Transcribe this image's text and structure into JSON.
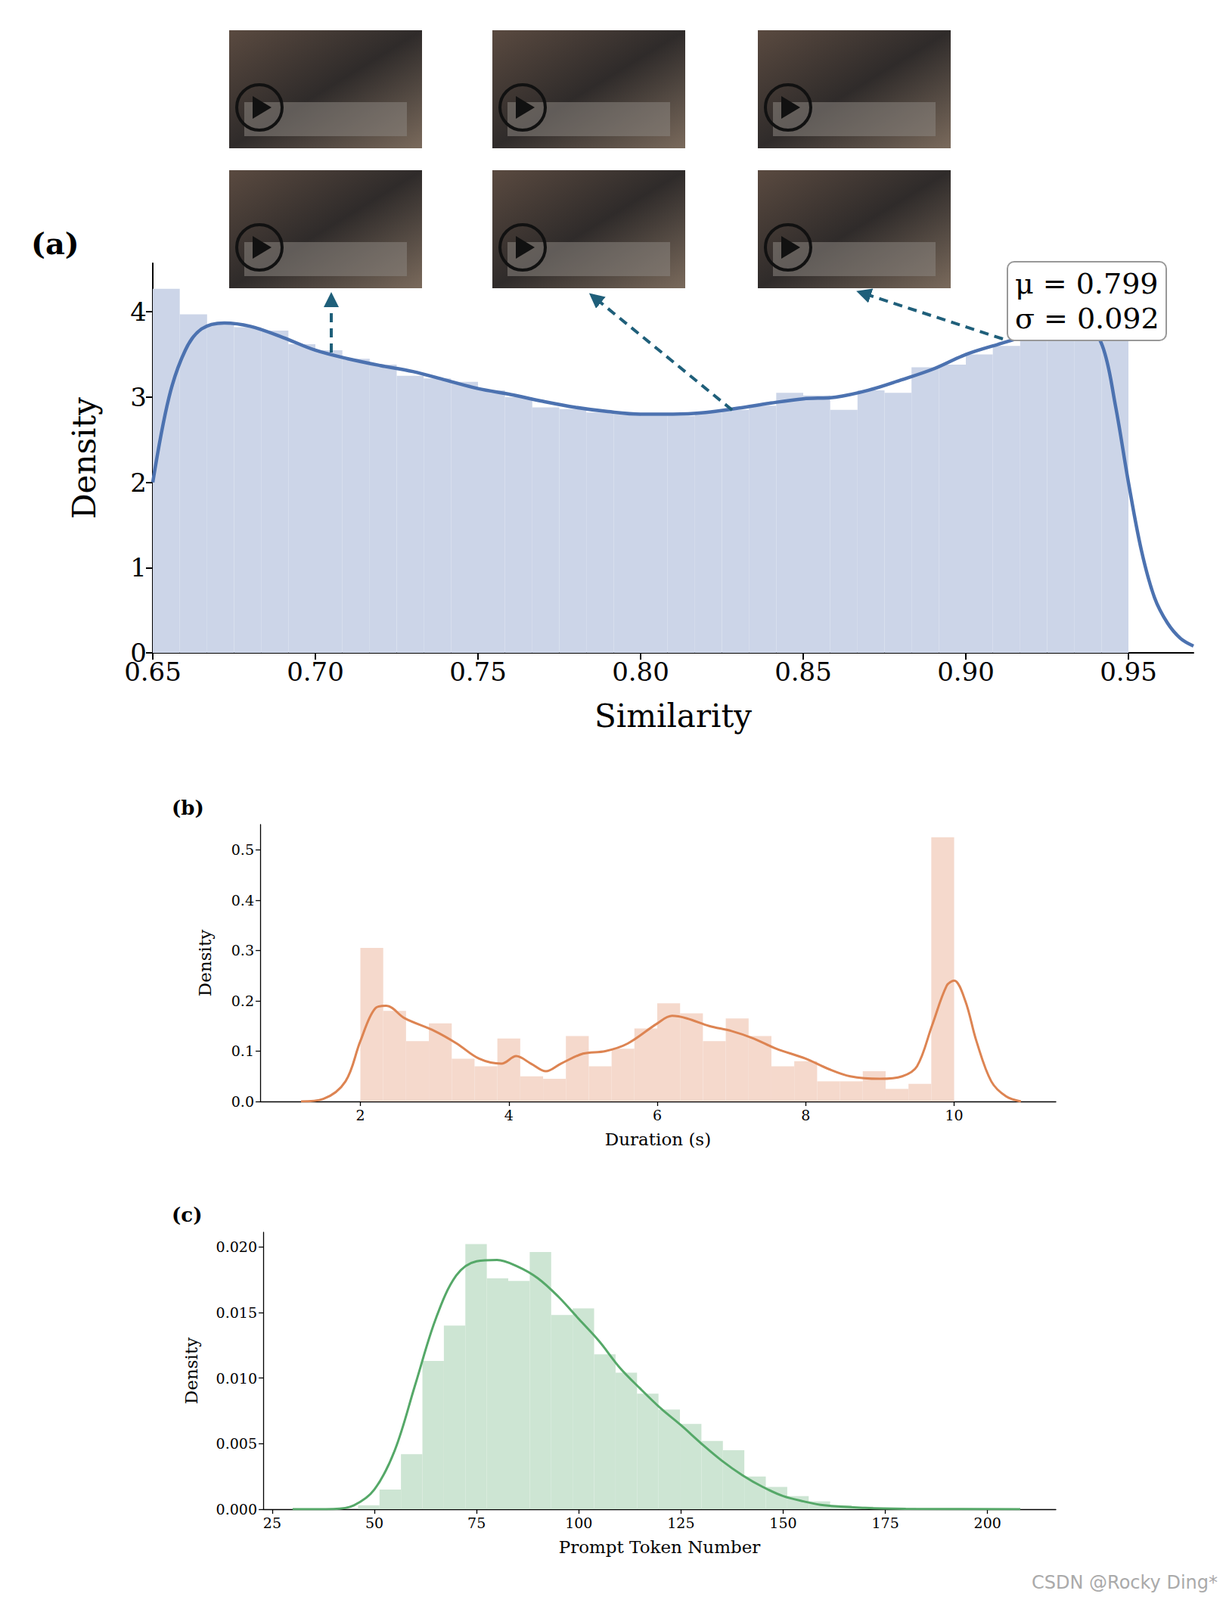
{
  "watermark": "CSDN @Rocky Ding*",
  "chart_data": [
    {
      "type": "histogram",
      "title": "(a)",
      "x_label": "Similarity",
      "y_label": "Density",
      "annotations": [
        "μ = 0.799",
        "σ = 0.092"
      ],
      "bins": [
        0.65,
        0.6583,
        0.6667,
        0.675,
        0.6833,
        0.6917,
        0.7,
        0.7083,
        0.7167,
        0.725,
        0.7333,
        0.7417,
        0.75,
        0.7583,
        0.7667,
        0.775,
        0.7833,
        0.7917,
        0.8,
        0.8083,
        0.8167,
        0.825,
        0.8333,
        0.8417,
        0.85,
        0.8583,
        0.8667,
        0.875,
        0.8833,
        0.8917,
        0.9,
        0.9083,
        0.9167,
        0.925,
        0.9333,
        0.9417,
        0.95
      ],
      "values": [
        4.27,
        3.97,
        3.85,
        3.82,
        3.78,
        3.62,
        3.55,
        3.45,
        3.38,
        3.25,
        3.22,
        3.18,
        3.08,
        3.0,
        2.88,
        2.86,
        2.82,
        2.8,
        2.78,
        2.78,
        2.82,
        2.85,
        2.9,
        3.05,
        3.02,
        2.85,
        3.08,
        3.05,
        3.35,
        3.38,
        3.5,
        3.6,
        3.7,
        3.8,
        3.85,
        3.85
      ],
      "color": "#ccd5e8",
      "curve": {
        "x": [
          0.65,
          0.655,
          0.66,
          0.665,
          0.672,
          0.68,
          0.69,
          0.7,
          0.71,
          0.72,
          0.73,
          0.74,
          0.75,
          0.76,
          0.77,
          0.78,
          0.79,
          0.8,
          0.81,
          0.82,
          0.83,
          0.84,
          0.85,
          0.86,
          0.87,
          0.88,
          0.89,
          0.9,
          0.91,
          0.92,
          0.93,
          0.937,
          0.942,
          0.946,
          0.95,
          0.954,
          0.958,
          0.962,
          0.966,
          0.97
        ],
        "values": [
          2.0,
          3.0,
          3.55,
          3.8,
          3.87,
          3.83,
          3.7,
          3.55,
          3.45,
          3.37,
          3.3,
          3.2,
          3.1,
          3.03,
          2.95,
          2.88,
          2.83,
          2.8,
          2.8,
          2.82,
          2.87,
          2.93,
          2.98,
          3.0,
          3.08,
          3.2,
          3.33,
          3.5,
          3.62,
          3.73,
          3.82,
          3.84,
          3.6,
          2.9,
          2.0,
          1.2,
          0.65,
          0.35,
          0.17,
          0.08
        ],
        "color": "#4c72b0"
      },
      "xlim": [
        0.65,
        0.97
      ],
      "xticks": [
        0.65,
        {
          "value": 0.7,
          "label": "0.70"
        },
        0.75,
        {
          "value": 0.8,
          "label": "0.80"
        },
        0.85,
        {
          "value": 0.9,
          "label": "0.90"
        },
        0.95
      ],
      "ylim": [
        0,
        4.57
      ],
      "yticks": [
        0,
        1,
        2,
        3,
        4
      ],
      "grid": false
    },
    {
      "type": "histogram",
      "title": "(b)",
      "x_label": "Duration (s)",
      "y_label": "Density",
      "bins": [
        2,
        2.308,
        2.615,
        2.923,
        3.231,
        3.538,
        3.846,
        4.154,
        4.462,
        4.769,
        5.077,
        5.385,
        5.692,
        6,
        6.308,
        6.615,
        6.923,
        7.231,
        7.538,
        7.846,
        8.154,
        8.462,
        8.769,
        9.077,
        9.385,
        9.692,
        10
      ],
      "values": [
        0.305,
        0.18,
        0.12,
        0.155,
        0.085,
        0.07,
        0.125,
        0.05,
        0.045,
        0.13,
        0.07,
        0.105,
        0.145,
        0.195,
        0.175,
        0.12,
        0.165,
        0.13,
        0.07,
        0.08,
        0.04,
        0.04,
        0.06,
        0.025,
        0.035,
        0.525
      ],
      "color": "#f5d9cc",
      "curve": {
        "x": [
          1.2,
          1.5,
          1.8,
          2.0,
          2.2,
          2.35,
          2.6,
          3.0,
          3.3,
          3.6,
          3.9,
          4.1,
          4.3,
          4.5,
          4.7,
          5.0,
          5.3,
          5.6,
          6.0,
          6.2,
          6.4,
          6.7,
          7.0,
          7.3,
          7.6,
          8.0,
          8.3,
          8.6,
          9.0,
          9.3,
          9.5,
          9.7,
          9.9,
          10.0,
          10.15,
          10.3,
          10.5,
          10.7,
          10.9
        ],
        "values": [
          0.0,
          0.005,
          0.04,
          0.12,
          0.185,
          0.19,
          0.165,
          0.14,
          0.115,
          0.085,
          0.075,
          0.09,
          0.075,
          0.06,
          0.075,
          0.095,
          0.1,
          0.115,
          0.155,
          0.17,
          0.165,
          0.15,
          0.14,
          0.125,
          0.105,
          0.085,
          0.065,
          0.05,
          0.045,
          0.05,
          0.07,
          0.15,
          0.23,
          0.24,
          0.2,
          0.12,
          0.04,
          0.01,
          0.0
        ],
        "color": "#dd8452"
      },
      "xlim": [
        0.65,
        11.37
      ],
      "xticks": [
        2,
        4,
        6,
        8,
        10
      ],
      "ylim": [
        0,
        0.55
      ],
      "yticks": [
        {
          "value": 0,
          "label": "0.0"
        },
        0.1,
        0.2,
        0.3,
        0.4,
        0.5
      ],
      "grid": false
    },
    {
      "type": "histogram",
      "title": "(c)",
      "x_label": "Prompt Token Number",
      "y_label": "Density",
      "bins": [
        46,
        51.25,
        56.5,
        61.75,
        67,
        72.25,
        77.5,
        82.75,
        88,
        93.25,
        98.5,
        103.75,
        109,
        114.25,
        119.5,
        124.75,
        130,
        135.25,
        140.5,
        145.75,
        151,
        156.25,
        161.5,
        166.75,
        172,
        177.25,
        182.5
      ],
      "values": [
        0.0003,
        0.0015,
        0.0042,
        0.0113,
        0.014,
        0.0202,
        0.0176,
        0.0174,
        0.0196,
        0.0148,
        0.0153,
        0.0118,
        0.0104,
        0.0088,
        0.0076,
        0.0065,
        0.0052,
        0.0045,
        0.0025,
        0.0017,
        0.001,
        0.0006,
        0.0003,
        0.0002,
        0.0001,
        0.0001
      ],
      "color": "#cde5d3",
      "curve": {
        "x": [
          30,
          40,
          45,
          50,
          55,
          60,
          65,
          70,
          75,
          80,
          85,
          90,
          95,
          100,
          105,
          110,
          115,
          120,
          125,
          130,
          135,
          140,
          145,
          150,
          155,
          160,
          170,
          180,
          208
        ],
        "values": [
          0,
          2e-05,
          0.0003,
          0.0015,
          0.0045,
          0.0095,
          0.0145,
          0.0178,
          0.0189,
          0.019,
          0.0185,
          0.0176,
          0.0162,
          0.0145,
          0.0128,
          0.0108,
          0.0092,
          0.0077,
          0.0064,
          0.005,
          0.0037,
          0.0026,
          0.0017,
          0.001,
          0.0006,
          0.0003,
          0.0001,
          3e-05,
          0
        ],
        "color": "#55a868"
      },
      "xlim": [
        22.8,
        216.7
      ],
      "xticks": [
        25,
        50,
        75,
        100,
        125,
        150,
        175,
        200
      ],
      "ylim": [
        0,
        0.0211
      ],
      "yticks": [
        {
          "value": 0,
          "label": "0.000"
        },
        {
          "value": 0.005,
          "label": "0.005"
        },
        {
          "value": 0.01,
          "label": "0.010"
        },
        {
          "value": 0.015,
          "label": "0.015"
        },
        {
          "value": 0.02,
          "label": "0.020"
        }
      ],
      "grid": false
    }
  ]
}
